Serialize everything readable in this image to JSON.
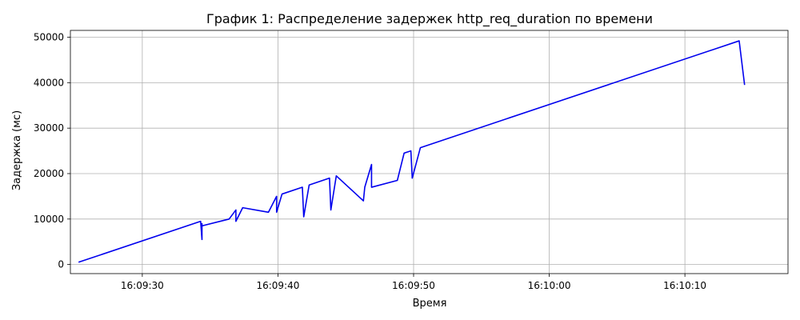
{
  "chart_data": {
    "type": "line",
    "title": "График 1: Распределение задержек http_req_duration по времени",
    "xlabel": "Время",
    "ylabel": "Задержка (мс)",
    "grid": true,
    "x_ticks": [
      "16:09:30",
      "16:09:40",
      "16:09:50",
      "16:10:00",
      "16:10:10"
    ],
    "y_ticks": [
      "0",
      "10000",
      "20000",
      "30000",
      "40000",
      "50000"
    ],
    "xlim": [
      "16:09:24.7",
      "16:10:17.6"
    ],
    "ylim": [
      -2000,
      51500
    ],
    "series": [
      {
        "color": "#0000ee",
        "x": [
          "16:09:25.3",
          "16:09:34.3",
          "16:09:34.4",
          "16:09:34.4",
          "16:09:34.4",
          "16:09:36.4",
          "16:09:36.9",
          "16:09:36.9",
          "16:09:37.4",
          "16:09:39.3",
          "16:09:39.9",
          "16:09:39.9",
          "16:09:40.3",
          "16:09:41.8",
          "16:09:41.9",
          "16:09:42.3",
          "16:09:43.8",
          "16:09:43.9",
          "16:09:44.3",
          "16:09:46.3",
          "16:09:46.4",
          "16:09:46.9",
          "16:09:46.9",
          "16:09:48.8",
          "16:09:49.3",
          "16:09:49.8",
          "16:09:49.9",
          "16:09:50.5",
          "16:10:14.0",
          "16:10:14.4"
        ],
        "y": [
          500,
          9500,
          5500,
          9000,
          8500,
          10000,
          12000,
          9500,
          12500,
          11500,
          15000,
          11500,
          15500,
          17000,
          10500,
          17500,
          19000,
          12000,
          19500,
          14000,
          17000,
          22000,
          17000,
          18500,
          24500,
          25000,
          19000,
          25700,
          49200,
          39500
        ]
      }
    ]
  }
}
